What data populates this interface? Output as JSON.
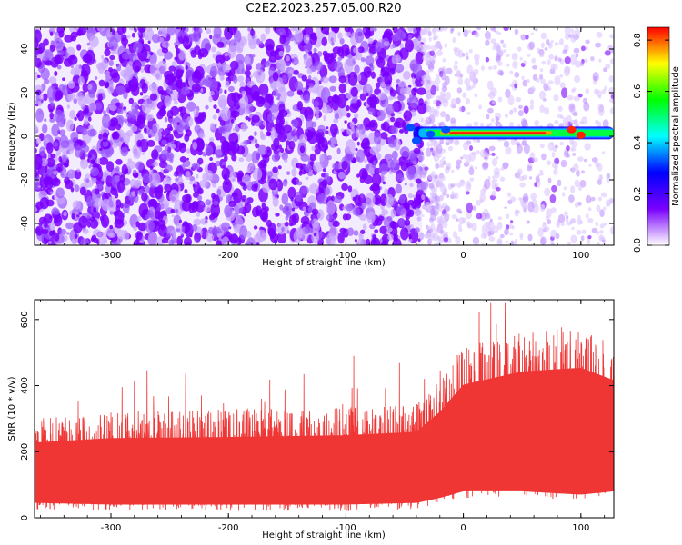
{
  "title": "C2E2.2023.257.05.00.R20",
  "colors": {
    "snr_line": "#f03535",
    "axis": "#000000"
  },
  "chart_data": [
    {
      "type": "heatmap",
      "title": "C2E2.2023.257.05.00.R20",
      "xlabel": "Height of straight line (km)",
      "ylabel": "Frequency (Hz)",
      "xlim": [
        -365,
        128
      ],
      "ylim": [
        -50,
        50
      ],
      "xticks": [
        -300,
        -200,
        -100,
        0,
        100
      ],
      "xtick_labels": [
        "-300",
        "-200",
        "-100",
        "0",
        "100"
      ],
      "yticks": [
        -40,
        -20,
        0,
        20,
        40
      ],
      "ytick_labels": [
        "-40",
        "-20",
        "0",
        "20",
        "40"
      ],
      "noise_transition_x": -35,
      "signal_band": {
        "frequency_hz": 1.5,
        "x_start": -35,
        "x_end": 128,
        "peak_amplitude": 0.85
      },
      "colorbar": {
        "label": "Normalized spectral amplitude",
        "range": [
          0,
          0.85
        ],
        "ticks": [
          0.0,
          0.2,
          0.4,
          0.6,
          0.8
        ],
        "tick_labels": [
          "0.0",
          "0.2",
          "0.4",
          "0.6",
          "0.8"
        ],
        "colormap": [
          "#ffffff",
          "#7a00ff",
          "#0000ff",
          "#00ffff",
          "#00ff00",
          "#ffff00",
          "#ff0000"
        ]
      },
      "grid": false
    },
    {
      "type": "line",
      "xlabel": "Height of straight line (km)",
      "ylabel": "SNR (10 * v/v)",
      "xlim": [
        -365,
        128
      ],
      "ylim": [
        0,
        660
      ],
      "xticks": [
        -300,
        -200,
        -100,
        0,
        100
      ],
      "xtick_labels": [
        "-300",
        "-200",
        "-100",
        "0",
        "100"
      ],
      "yticks": [
        0,
        200,
        400,
        600
      ],
      "ytick_labels": [
        "0",
        "200",
        "400",
        "600"
      ],
      "envelope": [
        {
          "x": -365,
          "low": 25,
          "mean": 140,
          "high": 300
        },
        {
          "x": -300,
          "low": 20,
          "mean": 145,
          "high": 320
        },
        {
          "x": -200,
          "low": 20,
          "mean": 140,
          "high": 330
        },
        {
          "x": -100,
          "low": 20,
          "mean": 140,
          "high": 340
        },
        {
          "x": -40,
          "low": 25,
          "mean": 150,
          "high": 350
        },
        {
          "x": -20,
          "low": 40,
          "mean": 200,
          "high": 420
        },
        {
          "x": 0,
          "low": 60,
          "mean": 260,
          "high": 520
        },
        {
          "x": 50,
          "low": 60,
          "mean": 300,
          "high": 560
        },
        {
          "x": 100,
          "low": 50,
          "mean": 300,
          "high": 580
        },
        {
          "x": 128,
          "low": 60,
          "mean": 290,
          "high": 520
        }
      ],
      "max_spike": 650,
      "grid": false
    }
  ]
}
